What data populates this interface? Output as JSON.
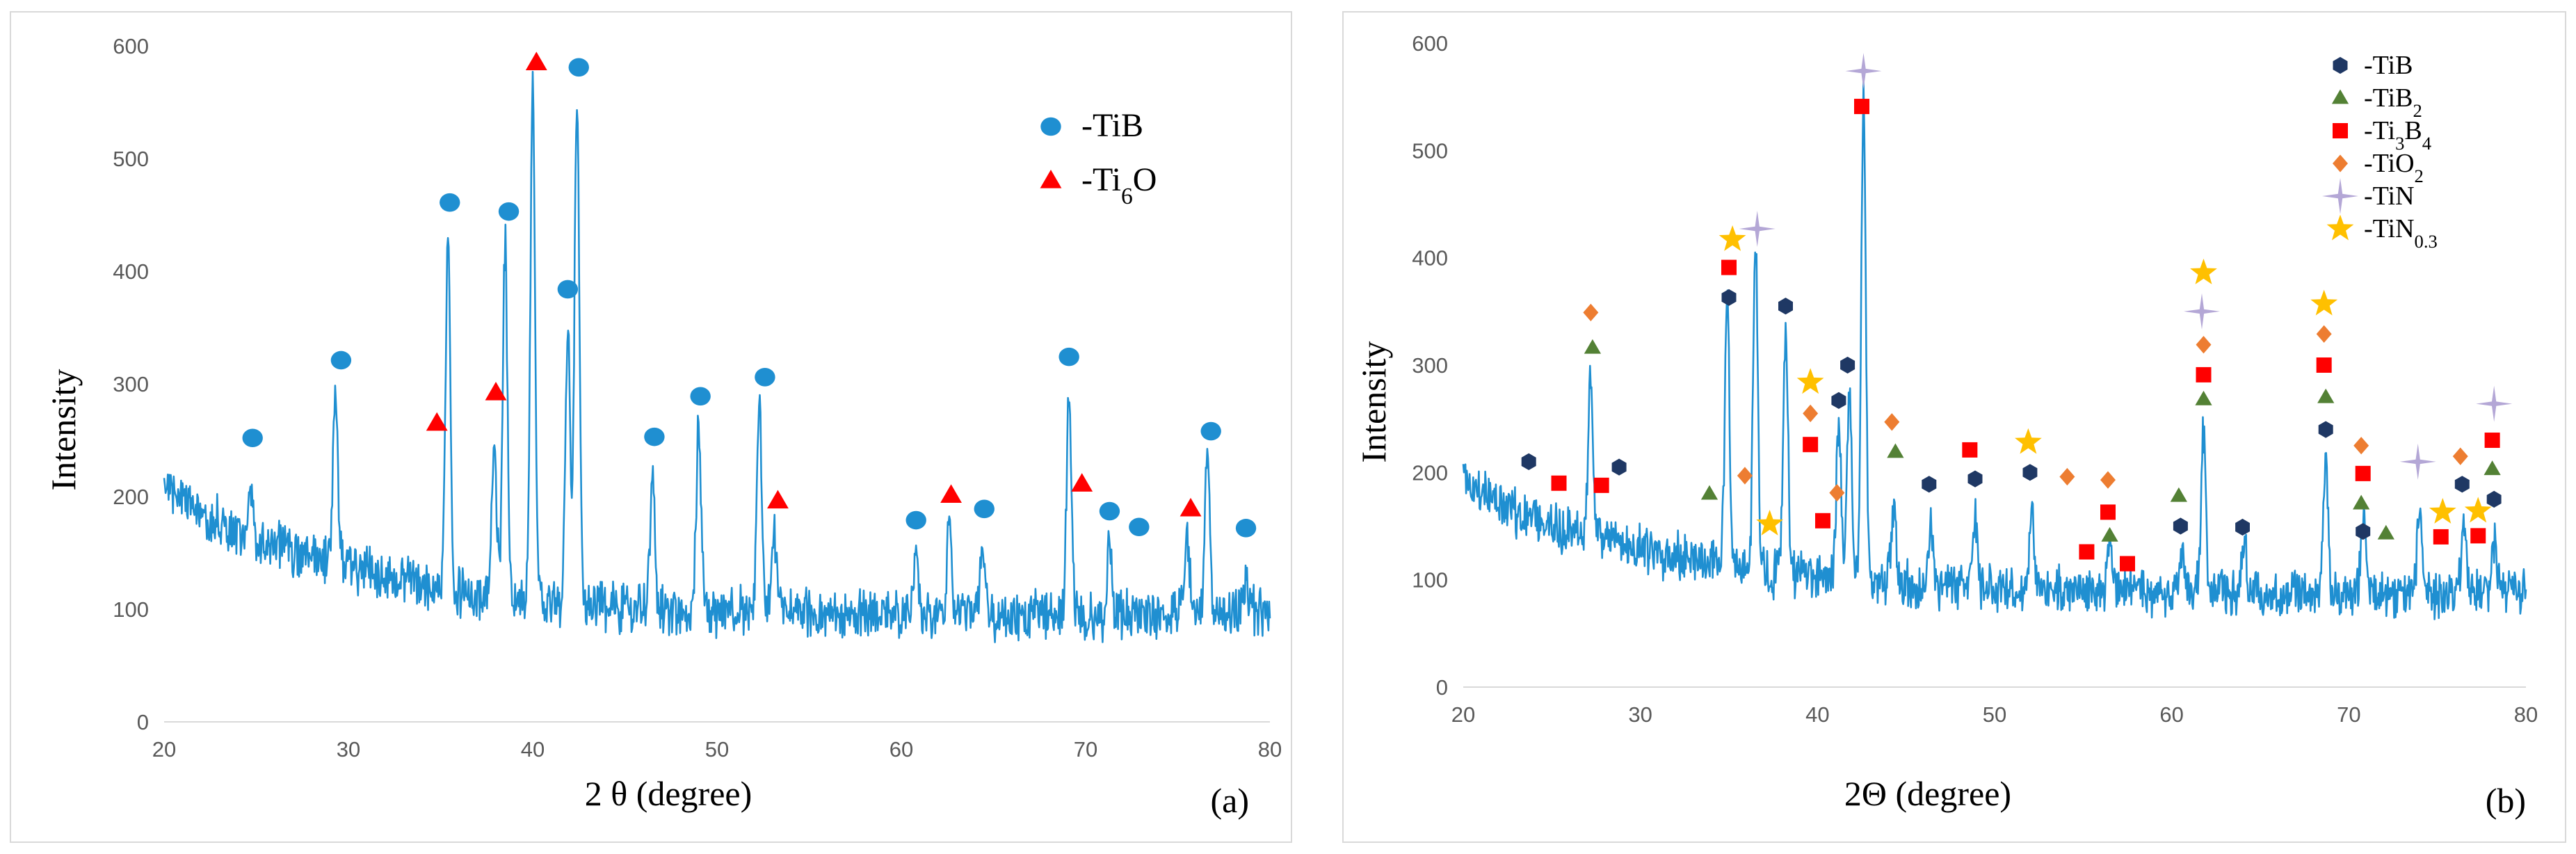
{
  "chart_data": [
    {
      "type": "line",
      "panel_label": "(a)",
      "xlabel": "2 θ (degree)",
      "ylabel": "Intensity",
      "xlim": [
        20,
        80
      ],
      "ylim": [
        0,
        600
      ],
      "x_ticks": [
        "20",
        "30",
        "40",
        "50",
        "60",
        "70",
        "80"
      ],
      "y_ticks": [
        "0",
        "100",
        "200",
        "300",
        "400",
        "500",
        "600"
      ],
      "line_color": "#1f8fd1",
      "baseline": {
        "x": [
          20,
          22,
          25,
          30,
          35,
          40,
          45,
          50,
          55,
          60,
          65,
          70,
          75,
          80
        ],
        "y": [
          215,
          185,
          160,
          135,
          118,
          108,
          102,
          98,
          96,
          95,
          94,
          95,
          96,
          98
        ]
      },
      "peaks": [
        {
          "x": 24.7,
          "y": 205
        },
        {
          "x": 29.3,
          "y": 290
        },
        {
          "x": 35.4,
          "y": 435
        },
        {
          "x": 37.9,
          "y": 250
        },
        {
          "x": 38.5,
          "y": 425
        },
        {
          "x": 40.0,
          "y": 562
        },
        {
          "x": 41.9,
          "y": 345
        },
        {
          "x": 42.4,
          "y": 553
        },
        {
          "x": 46.5,
          "y": 218
        },
        {
          "x": 49.0,
          "y": 262
        },
        {
          "x": 52.3,
          "y": 278
        },
        {
          "x": 53.1,
          "y": 165
        },
        {
          "x": 60.8,
          "y": 155
        },
        {
          "x": 62.6,
          "y": 170
        },
        {
          "x": 64.4,
          "y": 160
        },
        {
          "x": 69.1,
          "y": 298
        },
        {
          "x": 71.3,
          "y": 160
        },
        {
          "x": 75.5,
          "y": 165
        },
        {
          "x": 76.6,
          "y": 232
        },
        {
          "x": 78.7,
          "y": 130
        }
      ],
      "series": [
        {
          "name": "-TiB",
          "marker": "circle",
          "color": "#1f8fd1",
          "x": [
            24.8,
            29.6,
            35.5,
            38.7,
            41.9,
            42.5,
            46.6,
            49.1,
            52.6,
            60.8,
            64.5,
            69.1,
            71.3,
            72.9,
            76.8,
            78.7
          ],
          "y": [
            252,
            321,
            461,
            453,
            384,
            581,
            253,
            289,
            306,
            179,
            189,
            324,
            187,
            173,
            258,
            172
          ]
        },
        {
          "name": "-Ti6O",
          "marker": "triangle",
          "color": "#ff0000",
          "x": [
            34.8,
            38.0,
            40.2,
            53.3,
            62.7,
            69.8,
            75.7
          ],
          "y": [
            265,
            292,
            585,
            196,
            201,
            211,
            189
          ]
        }
      ],
      "legend": [
        {
          "label": "-TiB",
          "base": "-TiB",
          "sub": "",
          "after": ""
        },
        {
          "label": "-Ti6O",
          "base": "-Ti",
          "sub": "6",
          "after": "O"
        }
      ]
    },
    {
      "type": "line",
      "panel_label": "(b)",
      "xlabel": "2Θ (degree)",
      "ylabel": "Intensity",
      "xlim": [
        20,
        80
      ],
      "ylim": [
        0,
        600
      ],
      "x_ticks": [
        "20",
        "30",
        "40",
        "50",
        "60",
        "70",
        "80"
      ],
      "y_ticks": [
        "0",
        "100",
        "200",
        "300",
        "400",
        "500",
        "600"
      ],
      "line_color": "#1f8fd1",
      "baseline": {
        "x": [
          20,
          22,
          25,
          30,
          35,
          40,
          45,
          50,
          55,
          60,
          65,
          70,
          75,
          80
        ],
        "y": [
          195,
          170,
          150,
          128,
          112,
          102,
          96,
          92,
          90,
          89,
          88,
          88,
          88,
          88
        ]
      },
      "peaks": [
        {
          "x": 27.2,
          "y": 290
        },
        {
          "x": 34.9,
          "y": 360
        },
        {
          "x": 36.5,
          "y": 420
        },
        {
          "x": 38.2,
          "y": 340
        },
        {
          "x": 41.2,
          "y": 255
        },
        {
          "x": 41.8,
          "y": 275
        },
        {
          "x": 42.6,
          "y": 550
        },
        {
          "x": 44.3,
          "y": 165
        },
        {
          "x": 46.4,
          "y": 150
        },
        {
          "x": 48.9,
          "y": 160
        },
        {
          "x": 52.1,
          "y": 160
        },
        {
          "x": 56.5,
          "y": 140
        },
        {
          "x": 60.6,
          "y": 130
        },
        {
          "x": 61.8,
          "y": 240
        },
        {
          "x": 64.1,
          "y": 140
        },
        {
          "x": 68.7,
          "y": 210
        },
        {
          "x": 70.8,
          "y": 155
        },
        {
          "x": 74.0,
          "y": 170
        },
        {
          "x": 76.5,
          "y": 155
        },
        {
          "x": 78.2,
          "y": 140
        }
      ],
      "series": [
        {
          "name": "-TiB",
          "marker": "hexagon",
          "color": "#1f3864",
          "x": [
            23.7,
            28.8,
            35.0,
            38.2,
            41.2,
            41.7,
            46.3,
            48.9,
            52.0,
            60.5,
            64.0,
            68.7,
            70.8,
            76.4,
            78.2
          ],
          "y": [
            210,
            205,
            363,
            355,
            267,
            300,
            189,
            194,
            200,
            150,
            149,
            240,
            145,
            189,
            175
          ]
        },
        {
          "name": "-TiB2",
          "marker": "triangle",
          "color": "#538135",
          "x": [
            27.3,
            33.9,
            44.4,
            56.5,
            60.4,
            61.8,
            68.7,
            70.7,
            72.1,
            78.1
          ],
          "y": [
            316,
            180,
            219,
            141,
            178,
            268,
            270,
            171,
            143,
            203
          ]
        },
        {
          "name": "-Ti3B4",
          "marker": "square",
          "color": "#ff0000",
          "x": [
            25.4,
            27.8,
            35.0,
            39.6,
            40.3,
            42.5,
            48.6,
            55.2,
            56.4,
            57.5,
            61.8,
            68.6,
            70.8,
            75.2,
            77.3,
            78.1
          ],
          "y": [
            190,
            188,
            391,
            226,
            155,
            541,
            221,
            126,
            163,
            115,
            291,
            300,
            199,
            140,
            141,
            230
          ]
        },
        {
          "name": "-TiO2",
          "marker": "diamond",
          "color": "#ed7d31",
          "x": [
            27.2,
            35.9,
            39.6,
            41.1,
            44.2,
            54.1,
            56.4,
            61.8,
            68.6,
            70.7,
            76.3
          ],
          "y": [
            349,
            197,
            255,
            181,
            247,
            196,
            193,
            319,
            329,
            225,
            215
          ]
        },
        {
          "name": "-TiN",
          "marker": "star4",
          "color": "#b4a7d6",
          "x": [
            36.6,
            42.6,
            61.7,
            73.9,
            78.2
          ],
          "y": [
            427,
            574,
            350,
            210,
            264
          ]
        },
        {
          "name": "-TiN0.3",
          "marker": "star5",
          "color": "#ffc000",
          "x": [
            35.2,
            37.3,
            39.6,
            51.9,
            61.8,
            68.6,
            75.3,
            77.3
          ],
          "y": [
            417,
            152,
            284,
            228,
            386,
            357,
            163,
            164
          ]
        }
      ],
      "legend": [
        {
          "label": "-TiB",
          "base": "-TiB",
          "sub": "",
          "after": ""
        },
        {
          "label": "-TiB2",
          "base": "-TiB",
          "sub": "2",
          "after": ""
        },
        {
          "label": "-Ti3B4",
          "base": "-Ti",
          "sub": "3",
          "after": "B",
          "sub2": "4"
        },
        {
          "label": "-TiO2",
          "base": "-TiO",
          "sub": "2",
          "after": ""
        },
        {
          "label": "-TiN",
          "base": "-TiN",
          "sub": "",
          "after": ""
        },
        {
          "label": "-TiN0.3",
          "base": "-TiN",
          "sub": "0.3",
          "after": ""
        }
      ]
    }
  ]
}
